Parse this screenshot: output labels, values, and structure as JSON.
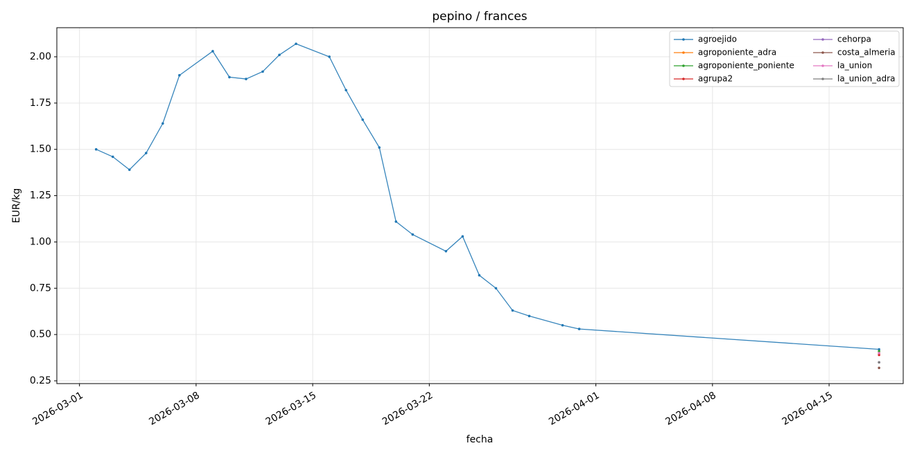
{
  "chart_data": {
    "type": "line",
    "title": "pepino / frances",
    "x_label": "fecha",
    "y_label": "EUR/kg",
    "xlim": [
      "2026-02-27T15:22",
      "2026-04-19T10:48"
    ],
    "xticks": [
      "2026-03-01",
      "2026-03-08",
      "2026-03-15",
      "2026-03-22",
      "2026-04-01",
      "2026-04-08",
      "2026-04-15"
    ],
    "ylim": [
      0.235,
      2.157
    ],
    "yticks": [
      0.25,
      {
        "value": 0.5,
        "label": "0.50"
      },
      0.75,
      {
        "value": 1,
        "label": "1.00"
      },
      1.25,
      {
        "value": 1.5,
        "label": "1.50"
      },
      1.75,
      {
        "value": 2,
        "label": "2.00"
      }
    ],
    "grid": true,
    "legend": "upper right",
    "series": [
      {
        "name": "agroejido",
        "color": "#1f77b4",
        "x": [
          "2026-03-02",
          "2026-03-03",
          "2026-03-04",
          "2026-03-05",
          "2026-03-06",
          "2026-03-07",
          "2026-03-09",
          "2026-03-10",
          "2026-03-11",
          "2026-03-12",
          "2026-03-13",
          "2026-03-14",
          "2026-03-16",
          "2026-03-17",
          "2026-03-18",
          "2026-03-19",
          "2026-03-20",
          "2026-03-21",
          "2026-03-23",
          "2026-03-24",
          "2026-03-25",
          "2026-03-26",
          "2026-03-27",
          "2026-03-28",
          "2026-03-30",
          "2026-03-31",
          "2026-04-18"
        ],
        "values": [
          1.5,
          1.46,
          1.39,
          1.48,
          1.64,
          1.9,
          2.03,
          1.89,
          1.88,
          1.92,
          2.01,
          2.07,
          2.0,
          1.82,
          1.66,
          1.51,
          1.11,
          1.04,
          0.95,
          1.03,
          0.82,
          0.75,
          0.63,
          0.6,
          0.55,
          0.53,
          0.42
        ]
      },
      {
        "name": "agroponiente_adra",
        "color": "#ff7f0e",
        "x": [
          "2026-04-18"
        ],
        "values": [
          0.4
        ]
      },
      {
        "name": "agroponiente_poniente",
        "color": "#2ca02c",
        "x": [
          "2026-04-18"
        ],
        "values": [
          0.41
        ]
      },
      {
        "name": "agrupa2",
        "color": "#d62728",
        "x": [
          "2026-04-18"
        ],
        "values": [
          0.39
        ]
      },
      {
        "name": "cehorpa",
        "color": "#9467bd",
        "x": [
          "2026-04-18"
        ],
        "values": [
          0.35
        ]
      },
      {
        "name": "costa_almeria",
        "color": "#8c564b",
        "x": [
          "2026-04-18"
        ],
        "values": [
          0.32
        ]
      },
      {
        "name": "la_union",
        "color": "#e377c2",
        "x": [
          "2026-04-18"
        ],
        "values": [
          0.4
        ]
      },
      {
        "name": "la_union_adra",
        "color": "#7f7f7f",
        "x": [
          "2026-04-18"
        ],
        "values": [
          0.35
        ]
      }
    ]
  }
}
